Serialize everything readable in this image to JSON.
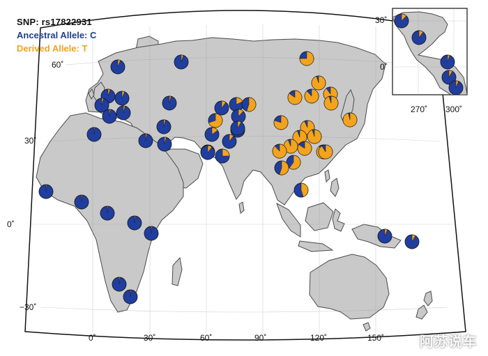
{
  "legend": {
    "snp": "SNP: rs17822931",
    "ancestral": "Ancestral Allele: C",
    "derived": "Derived Allele: T"
  },
  "colors": {
    "ancestral": "#203ea0",
    "derived": "#f3a31d",
    "land": "#c9c9c9",
    "ocean": "#ffffff",
    "border": "#111111"
  },
  "axes": {
    "main": {
      "lat_labels": [
        "60˚",
        "30˚",
        "0˚",
        "−30˚"
      ],
      "lon_labels": [
        "0˚",
        "30˚",
        "60˚",
        "90˚",
        "120˚",
        "150˚"
      ]
    },
    "inset": {
      "lat_labels": [
        "30˚",
        "0˚"
      ],
      "lon_labels": [
        "270˚",
        "300˚"
      ]
    }
  },
  "watermark": "阿苏说车",
  "pie_markers": [
    {
      "name": "norway",
      "derived": 0.06
    },
    {
      "name": "finland",
      "derived": 0.05
    },
    {
      "name": "uk",
      "derived": 0.05
    },
    {
      "name": "scandinavia",
      "derived": 0.06
    },
    {
      "name": "france",
      "derived": 0.04
    },
    {
      "name": "spain",
      "derived": 0.03
    },
    {
      "name": "italy",
      "derived": 0.04
    },
    {
      "name": "russia-west",
      "derived": 0.04
    },
    {
      "name": "algeria",
      "derived": 0.02
    },
    {
      "name": "egypt",
      "derived": 0.03
    },
    {
      "name": "turkey",
      "derived": 0.04
    },
    {
      "name": "levant",
      "derived": 0.04
    },
    {
      "name": "arabia",
      "derived": 0.03
    },
    {
      "name": "west-africa",
      "derived": 0.02
    },
    {
      "name": "mali",
      "derived": 0.02
    },
    {
      "name": "nigeria",
      "derived": 0.02
    },
    {
      "name": "cameroon",
      "derived": 0.02
    },
    {
      "name": "kenya",
      "derived": 0.02
    },
    {
      "name": "angola",
      "derived": 0.02
    },
    {
      "name": "south-africa",
      "derived": 0.02
    },
    {
      "name": "central-asia-1",
      "derived": 0.1
    },
    {
      "name": "central-asia-2",
      "derived": 0.18
    },
    {
      "name": "central-asia-3",
      "derived": 0.12
    },
    {
      "name": "central-asia-4",
      "derived": 0.55
    },
    {
      "name": "central-asia-5",
      "derived": 0.7
    },
    {
      "name": "central-asia-6",
      "derived": 0.2
    },
    {
      "name": "iran",
      "derived": 0.15
    },
    {
      "name": "pakistan",
      "derived": 0.1
    },
    {
      "name": "india-north",
      "derived": 0.25
    },
    {
      "name": "india-west",
      "derived": 0.1
    },
    {
      "name": "india-east",
      "derived": 0.08
    },
    {
      "name": "siberia",
      "derived": 0.75
    },
    {
      "name": "mongolia",
      "derived": 0.95
    },
    {
      "name": "china-northwest",
      "derived": 0.88
    },
    {
      "name": "china-north",
      "derived": 0.9
    },
    {
      "name": "china-northeast",
      "derived": 0.95
    },
    {
      "name": "korea",
      "derived": 0.96
    },
    {
      "name": "japan",
      "derived": 0.85
    },
    {
      "name": "tibet",
      "derived": 0.8
    },
    {
      "name": "china-central-1",
      "derived": 0.93
    },
    {
      "name": "china-central-2",
      "derived": 0.94
    },
    {
      "name": "china-central-3",
      "derived": 0.95
    },
    {
      "name": "china-east",
      "derived": 0.94
    },
    {
      "name": "china-southwest",
      "derived": 0.84
    },
    {
      "name": "china-south-1",
      "derived": 0.89
    },
    {
      "name": "china-south-2",
      "derived": 0.88
    },
    {
      "name": "taiwan",
      "derived": 0.91
    },
    {
      "name": "myanmar",
      "derived": 0.6
    },
    {
      "name": "thailand",
      "derived": 0.55
    },
    {
      "name": "cambodia",
      "derived": 0.45
    },
    {
      "name": "new-guinea",
      "derived": 0.06
    },
    {
      "name": "melanesia",
      "derived": 0.08
    },
    {
      "name": "mexico-north",
      "derived": 0.12
    },
    {
      "name": "mexico-south",
      "derived": 0.1
    },
    {
      "name": "colombia",
      "derived": 0.05
    },
    {
      "name": "amazon",
      "derived": 0.08
    },
    {
      "name": "brazil",
      "derived": 0.06
    }
  ]
}
